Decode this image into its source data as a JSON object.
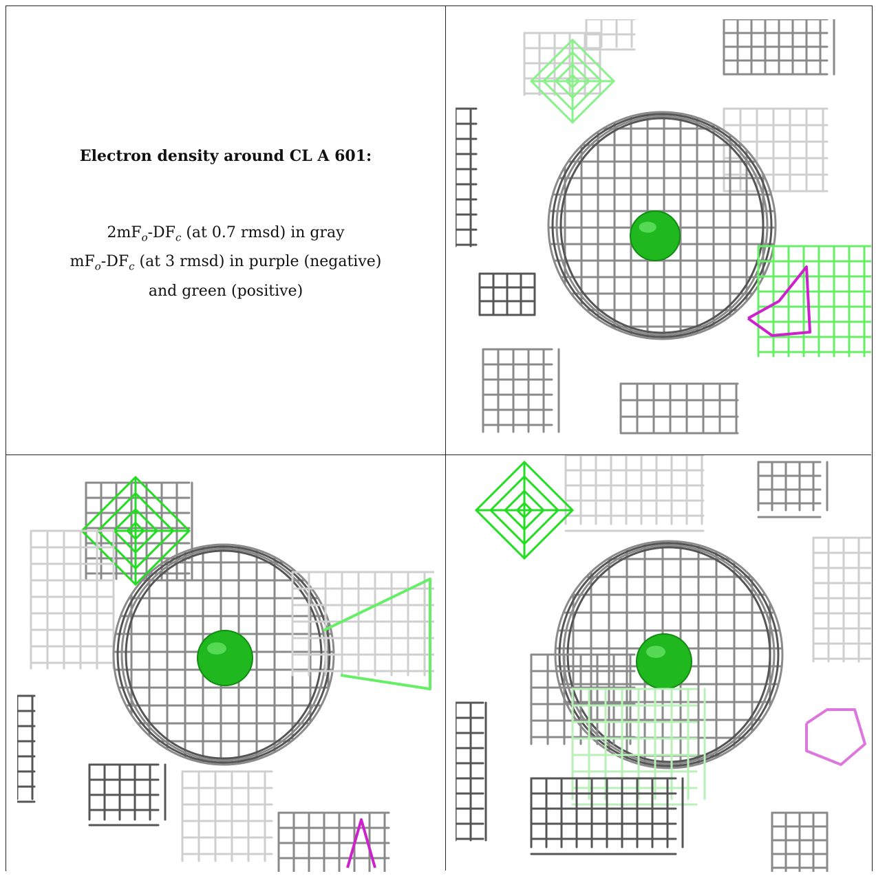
{
  "legend": {
    "title": "Electron density around CL A 601:",
    "line1": {
      "a": "2mF",
      "b": "o",
      "c": "-DF",
      "d": "c",
      "e": " (at 0.7 rmsd) in gray"
    },
    "line2": {
      "a": "mF",
      "b": "o",
      "c": "-DF",
      "d": "c",
      "e": " (at 3 rmsd) in purple (negative)"
    },
    "line3": "and green (positive)"
  },
  "colors": {
    "gray_mesh": "#8a8a8a",
    "dark_mesh": "#555555",
    "light_mesh": "#cfcfcf",
    "positive_green": "#22dd22",
    "negative_purple": "#cc22cc",
    "atom_green": "#1fb81f"
  },
  "views": [
    "electron-density-view-1",
    "electron-density-view-2",
    "electron-density-view-3"
  ]
}
